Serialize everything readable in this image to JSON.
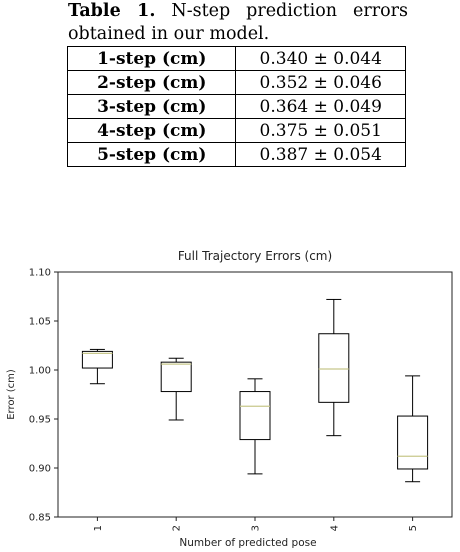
{
  "caption": {
    "label": "Table 1.",
    "text": "N-step prediction errors obtained in our model."
  },
  "table": {
    "rows": [
      {
        "step": "1-step (cm)",
        "value": "0.340 ± 0.044"
      },
      {
        "step": "2-step (cm)",
        "value": "0.352 ± 0.046"
      },
      {
        "step": "3-step (cm)",
        "value": "0.364 ± 0.049"
      },
      {
        "step": "4-step (cm)",
        "value": "0.375 ± 0.051"
      },
      {
        "step": "5-step (cm)",
        "value": "0.387 ± 0.054"
      }
    ]
  },
  "chart_data": {
    "type": "box",
    "title": "Full Trajectory Errors (cm)",
    "xlabel": "Number of predicted pose",
    "ylabel": "Error (cm)",
    "ylim": [
      0.85,
      1.1
    ],
    "yticks": [
      "0.85",
      "0.90",
      "0.95",
      "1.00",
      "1.05",
      "1.10"
    ],
    "categories": [
      "1",
      "2",
      "3",
      "4",
      "5"
    ],
    "boxes": [
      {
        "category": "1",
        "whisker_low": 0.986,
        "q1": 1.002,
        "median": 1.017,
        "q3": 1.019,
        "whisker_high": 1.021
      },
      {
        "category": "2",
        "whisker_low": 0.949,
        "q1": 0.978,
        "median": 1.006,
        "q3": 1.008,
        "whisker_high": 1.012
      },
      {
        "category": "3",
        "whisker_low": 0.894,
        "q1": 0.929,
        "median": 0.963,
        "q3": 0.978,
        "whisker_high": 0.991
      },
      {
        "category": "4",
        "whisker_low": 0.933,
        "q1": 0.967,
        "median": 1.001,
        "q3": 1.037,
        "whisker_high": 1.072
      },
      {
        "category": "5",
        "whisker_low": 0.886,
        "q1": 0.899,
        "median": 0.912,
        "q3": 0.953,
        "whisker_high": 0.994
      }
    ],
    "colors": {
      "box": "#000000",
      "median": "#c8c88c"
    },
    "grid": false,
    "legend": "none"
  }
}
